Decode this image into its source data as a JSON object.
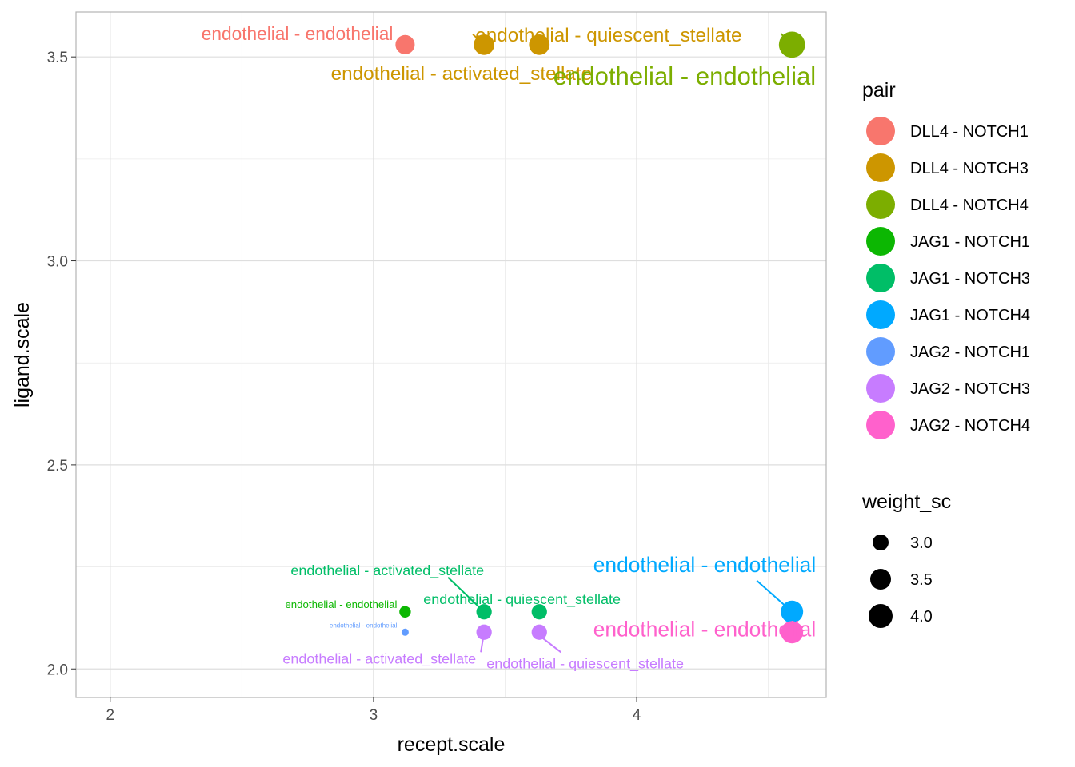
{
  "chart_data": {
    "type": "scatter",
    "xlabel": "recept.scale",
    "ylabel": "ligand.scale",
    "xlim": [
      1.87,
      4.72
    ],
    "ylim": [
      1.93,
      3.61
    ],
    "x_ticks": [
      2,
      3,
      4
    ],
    "x_tick_labels": [
      "2",
      "3",
      "4"
    ],
    "y_ticks": [
      2.0,
      2.5,
      3.0,
      3.5
    ],
    "y_tick_labels": [
      "2.0",
      "2.5",
      "3.0",
      "3.5"
    ],
    "grid": true,
    "legend": {
      "placement": "right",
      "color_title": "pair",
      "size_title": "weight_sc",
      "size_entries": [
        {
          "label": "3.0",
          "value": 3.0
        },
        {
          "label": "3.5",
          "value": 3.5
        },
        {
          "label": "4.0",
          "value": 4.0
        }
      ]
    },
    "series": [
      {
        "name": "DLL4 - NOTCH1",
        "color": "#F8766D",
        "points": [
          {
            "x": 3.12,
            "y": 3.53,
            "weight": 3.2,
            "label": "endothelial - endothelial"
          }
        ]
      },
      {
        "name": "DLL4 - NOTCH3",
        "color": "#CD9600",
        "points": [
          {
            "x": 3.42,
            "y": 3.53,
            "weight": 3.35,
            "label": "endothelial - activated_stellate"
          },
          {
            "x": 3.63,
            "y": 3.53,
            "weight": 3.35,
            "label": "endothelial - quiescent_stellate"
          }
        ]
      },
      {
        "name": "DLL4 - NOTCH4",
        "color": "#7CAE00",
        "points": [
          {
            "x": 4.59,
            "y": 3.53,
            "weight": 4.0,
            "label": "endothelial - endothelial"
          }
        ]
      },
      {
        "name": "JAG1 - NOTCH1",
        "color": "#0CB702",
        "points": [
          {
            "x": 3.12,
            "y": 2.14,
            "weight": 2.3,
            "label": "endothelial - endothelial"
          }
        ]
      },
      {
        "name": "JAG1 - NOTCH3",
        "color": "#00BE67",
        "points": [
          {
            "x": 3.42,
            "y": 2.14,
            "weight": 2.75,
            "label": "endothelial - activated_stellate"
          },
          {
            "x": 3.63,
            "y": 2.14,
            "weight": 2.75,
            "label": "endothelial - quiescent_stellate"
          }
        ]
      },
      {
        "name": "JAG1 - NOTCH4",
        "color": "#00A9FF",
        "points": [
          {
            "x": 4.59,
            "y": 2.14,
            "weight": 3.55,
            "label": "endothelial - endothelial"
          }
        ]
      },
      {
        "name": "JAG2 - NOTCH1",
        "color": "#619CFF",
        "points": [
          {
            "x": 3.12,
            "y": 2.09,
            "weight": 1.8,
            "label": "endothelial - endothelial"
          }
        ]
      },
      {
        "name": "JAG2 - NOTCH3",
        "color": "#C77CFF",
        "points": [
          {
            "x": 3.42,
            "y": 2.09,
            "weight": 2.75,
            "label": "endothelial - activated_stellate"
          },
          {
            "x": 3.63,
            "y": 2.09,
            "weight": 2.75,
            "label": "endothelial - quiescent_stellate"
          }
        ]
      },
      {
        "name": "JAG2 - NOTCH4",
        "color": "#FF61CC",
        "points": [
          {
            "x": 4.59,
            "y": 2.09,
            "weight": 3.55,
            "label": "endothelial - endothelial"
          }
        ]
      }
    ]
  }
}
